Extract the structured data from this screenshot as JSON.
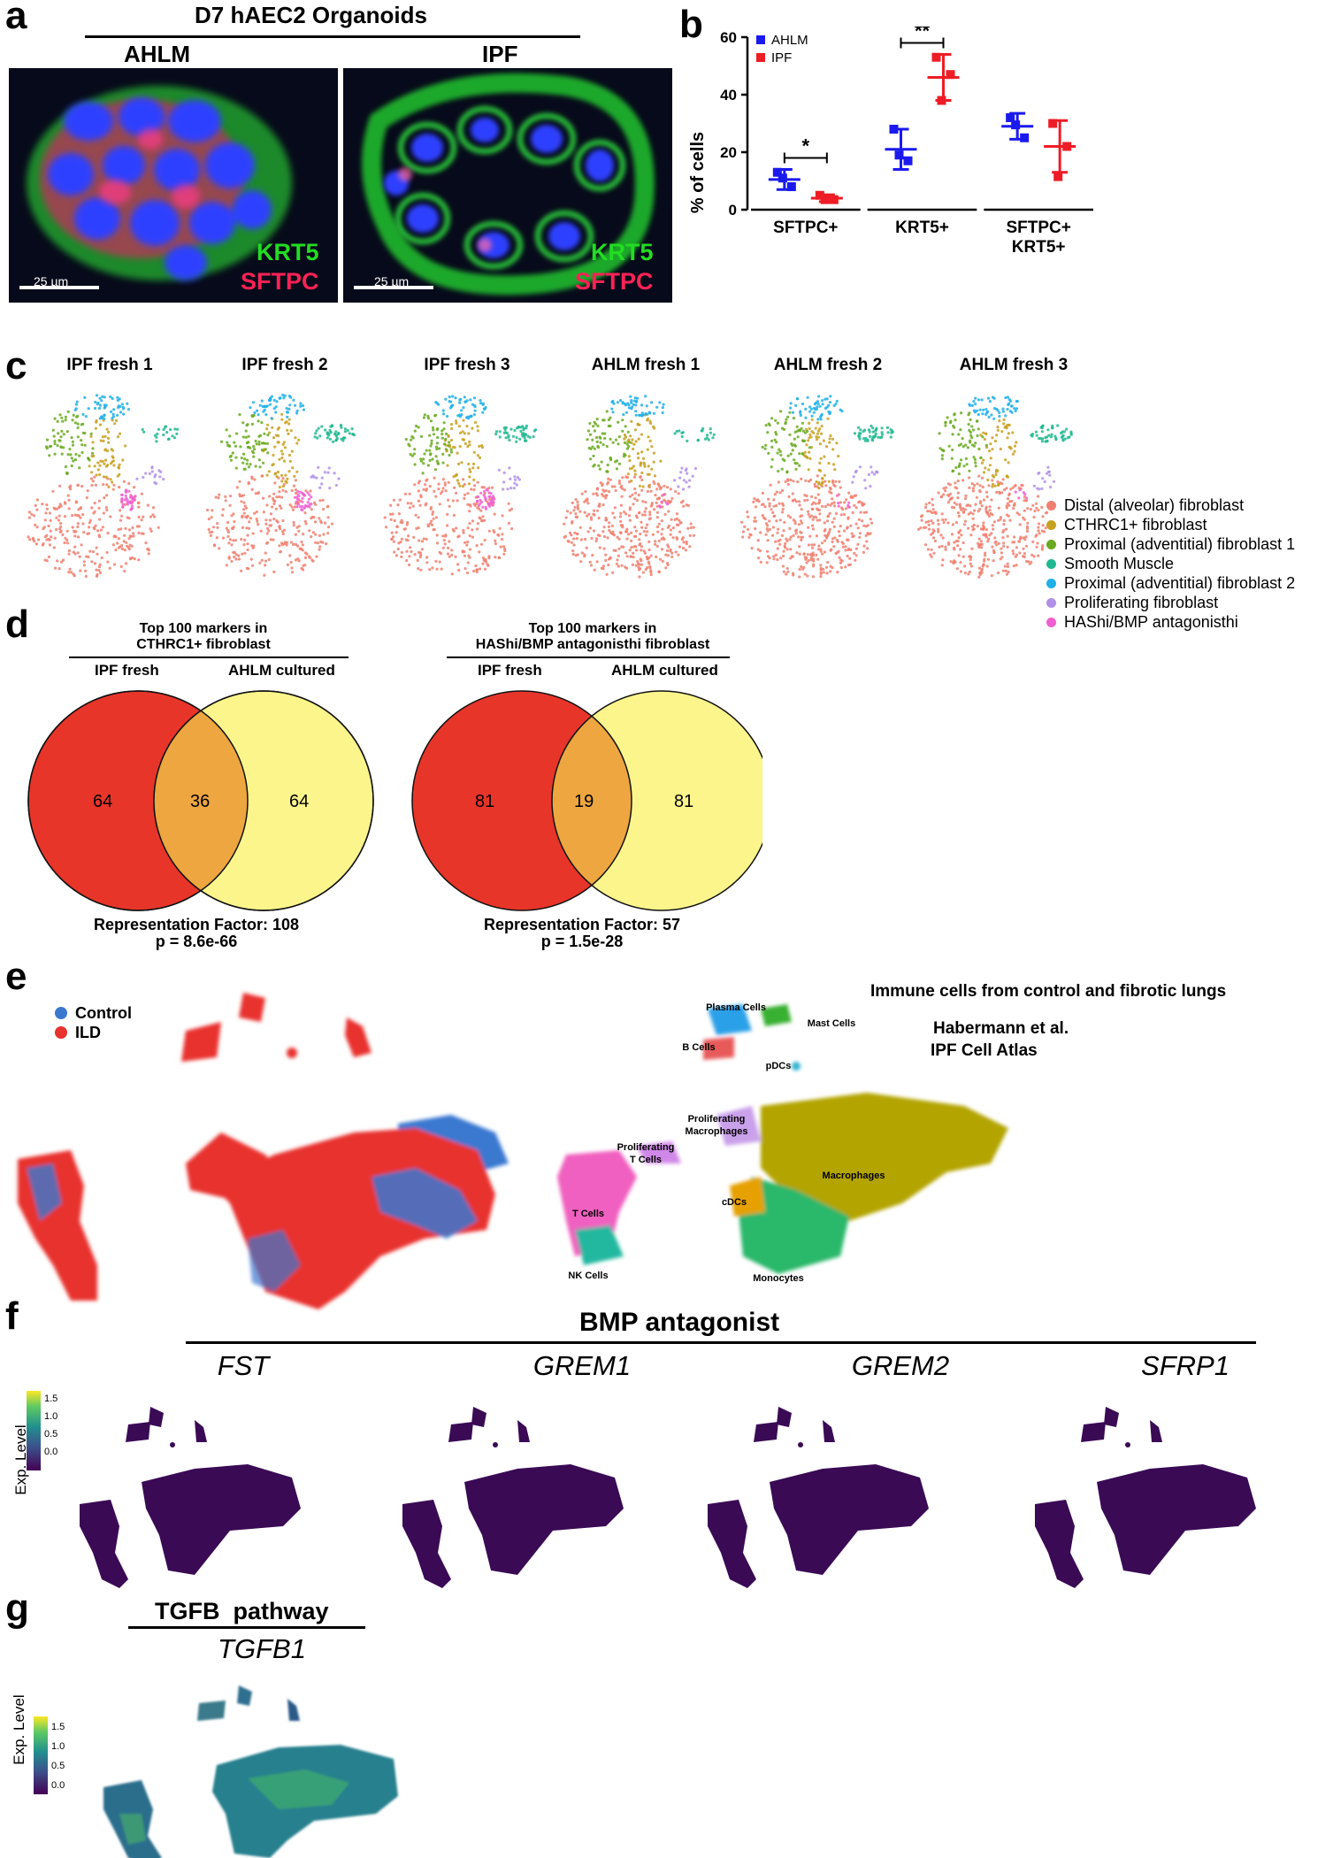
{
  "panel_labels": {
    "a": "a",
    "b": "b",
    "c": "c",
    "d": "d",
    "e": "e",
    "f": "f",
    "g": "g"
  },
  "panel_a": {
    "title": "D7 hAEC2 Organoids",
    "left": {
      "label": "AHLM",
      "stain1": "KRT5",
      "stain2": "SFTPC",
      "scalebar": "25 µm"
    },
    "right": {
      "label": "IPF",
      "stain1": "KRT5",
      "stain2": "SFTPC",
      "scalebar": "25 µm"
    },
    "colors": {
      "krt5": "#22dd22",
      "sftpc": "#ff2255",
      "nuclei": "#2a3cff"
    }
  },
  "chart_data": {
    "type": "scatter",
    "ylabel": "% of cells",
    "ylim": [
      0,
      60
    ],
    "yticks": [
      "0",
      "20",
      "40",
      "60"
    ],
    "categories": [
      "SFTPC+",
      "KRT5+",
      "SFTPC+\nKRT5+"
    ],
    "category_labels": [
      {
        "line1": "SFTPC+",
        "line2": ""
      },
      {
        "line1": "KRT5+",
        "line2": ""
      },
      {
        "line1": "SFTPC+",
        "line2": "KRT5+"
      }
    ],
    "legend": [
      {
        "name": "AHLM",
        "color": "#1a1aee"
      },
      {
        "name": "IPF",
        "color": "#ee1c25"
      }
    ],
    "series": [
      {
        "name": "AHLM",
        "color": "#1a1aee",
        "mean": [
          10.5,
          21,
          29
        ],
        "sd": [
          3.5,
          7,
          4.5
        ],
        "points": [
          [
            13,
            8,
            11
          ],
          [
            28,
            17,
            19
          ],
          [
            32,
            25,
            29.5
          ]
        ]
      },
      {
        "name": "IPF",
        "color": "#ee1c25",
        "mean": [
          4,
          46,
          22
        ],
        "sd": [
          1.2,
          8,
          9
        ],
        "points": [
          [
            5,
            3.5,
            3.5
          ],
          [
            53,
            47,
            38
          ],
          [
            30,
            22,
            11.5
          ]
        ]
      }
    ],
    "significance": [
      {
        "category": 0,
        "label": "*",
        "y": 18
      },
      {
        "category": 1,
        "label": "**",
        "y": 58
      }
    ]
  },
  "panel_c": {
    "titles": [
      "IPF fresh 1",
      "IPF fresh 2",
      "IPF fresh 3",
      "AHLM fresh 1",
      "AHLM fresh 2",
      "AHLM fresh 3"
    ],
    "legend": [
      {
        "label": "Distal (alveolar) fibroblast",
        "color": "#f08070"
      },
      {
        "label": "CTHRC1+ fibroblast",
        "color": "#c8a020"
      },
      {
        "label": "Proximal (adventitial) fibroblast 1",
        "color": "#6aaa20"
      },
      {
        "label": "Smooth Muscle",
        "color": "#20b890"
      },
      {
        "label": "Proximal (adventitial) fibroblast 2",
        "color": "#20b0e8"
      },
      {
        "label": "Proliferating fibroblast",
        "color": "#b090e8"
      },
      {
        "label": "HAShi/BMP antagonisthi",
        "color": "#f060d0"
      }
    ]
  },
  "panel_d": {
    "left": {
      "header1": "Top 100 markers in",
      "header2": "CTHRC1+ fibroblast",
      "set1": "IPF fresh",
      "set2": "AHLM cultured",
      "only1": "64",
      "both": "36",
      "only2": "64",
      "rf": "Representation Factor: 108",
      "p": "p = 8.6e-66"
    },
    "right": {
      "header1": "Top 100 markers in",
      "header2": "HAShi/BMP antagonisthi fibroblast",
      "set1": "IPF fresh",
      "set2": "AHLM cultured",
      "only1": "81",
      "both": "19",
      "only2": "81",
      "rf": "Representation Factor: 57",
      "p": "p = 1.5e-28"
    },
    "colors": {
      "set1": "#e8352a",
      "set2": "#fbf58c",
      "overlap": "#eda640"
    }
  },
  "panel_e": {
    "legend": [
      {
        "label": "Control",
        "color": "#3a78d0"
      },
      {
        "label": "ILD",
        "color": "#e8322e"
      }
    ],
    "title": "Immune cells from control and fibrotic lungs",
    "citation1": "Habermann et al.",
    "citation2": "IPF Cell Atlas",
    "clusters": [
      "Plasma Cells",
      "Mast Cells",
      "B Cells",
      "pDCs",
      "Proliferating Macrophages",
      "Proliferating T Cells",
      "Macrophages",
      "T Cells",
      "cDCs",
      "NK Cells",
      "Monocytes"
    ]
  },
  "panel_f": {
    "title": "BMP antagonist",
    "genes": [
      "FST",
      "GREM1",
      "GREM2",
      "SFRP1"
    ],
    "colorbar_label": "Exp. Level",
    "colorbar_ticks": [
      "1.5",
      "1.0",
      "0.5",
      "0.0"
    ]
  },
  "panel_g": {
    "title": "TGFB  pathway",
    "gene": "TGFB1",
    "colorbar_label": "Exp. Level",
    "colorbar_ticks": [
      "1.5",
      "1.0",
      "0.5",
      "0.0"
    ]
  }
}
